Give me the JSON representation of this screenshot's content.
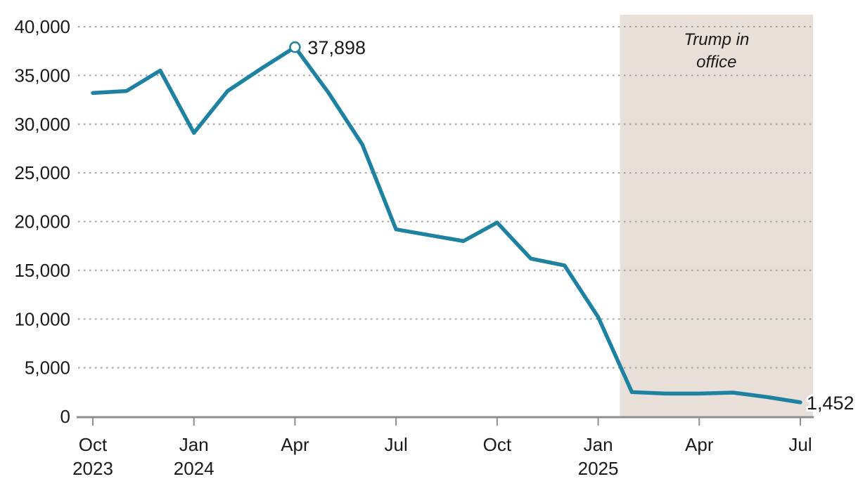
{
  "chart_data": {
    "type": "line",
    "x_labels": [
      "Oct 2023",
      "Nov 2023",
      "Dec 2023",
      "Jan 2024",
      "Feb 2024",
      "Mar 2024",
      "Apr 2024",
      "May 2024",
      "Jun 2024",
      "Jul 2024",
      "Aug 2024",
      "Sep 2024",
      "Oct 2024",
      "Nov 2024",
      "Dec 2024",
      "Jan 2025",
      "Feb 2025",
      "Mar 2025",
      "Apr 2025",
      "May 2025",
      "Jun 2025",
      "Jul 2025"
    ],
    "values": [
      33200,
      33400,
      35500,
      29100,
      33400,
      35700,
      37898,
      33200,
      27900,
      19200,
      18600,
      18000,
      19900,
      16200,
      15500,
      10200,
      2500,
      2350,
      2350,
      2450,
      2000,
      1452
    ],
    "ylim": [
      0,
      40000
    ],
    "grid": "dotted-horizontal",
    "legend": "none",
    "y_ticks": [
      {
        "value": 40000,
        "label": "40,000"
      },
      {
        "value": 35000,
        "label": "35,000"
      },
      {
        "value": 30000,
        "label": "30,000"
      },
      {
        "value": 25000,
        "label": "25,000"
      },
      {
        "value": 20000,
        "label": "20,000"
      },
      {
        "value": 15000,
        "label": "15,000"
      },
      {
        "value": 10000,
        "label": "10,000"
      },
      {
        "value": 5000,
        "label": "5,000"
      },
      {
        "value": 0,
        "label": "0"
      }
    ],
    "x_ticks": [
      {
        "index": 0,
        "month": "Oct",
        "year": "2023"
      },
      {
        "index": 3,
        "month": "Jan",
        "year": "2024"
      },
      {
        "index": 6,
        "month": "Apr",
        "year": ""
      },
      {
        "index": 9,
        "month": "Jul",
        "year": ""
      },
      {
        "index": 12,
        "month": "Oct",
        "year": ""
      },
      {
        "index": 15,
        "month": "Jan",
        "year": "2025"
      },
      {
        "index": 18,
        "month": "Apr",
        "year": ""
      },
      {
        "index": 21,
        "month": "Jul",
        "year": ""
      }
    ],
    "annotations": {
      "peak": {
        "x_label": "Apr 2024",
        "index": 6,
        "value": 37898,
        "text": "37,898",
        "marker": "open-circle"
      },
      "last": {
        "x_label": "Jul 2025",
        "index": 21,
        "value": 1452,
        "text": "1,452"
      }
    },
    "region": {
      "label": "Trump in office",
      "lines": [
        "Trump in",
        "office"
      ],
      "start_index": 15.65,
      "end": "chart-right-edge"
    },
    "colors": {
      "line": "#1d81a2",
      "annotation_text": "#2e87ac",
      "region_fill": "#e8dfd8",
      "grid": "#a0a0a0",
      "axis": "#8f8f8f",
      "text": "#1a1a1a"
    }
  }
}
